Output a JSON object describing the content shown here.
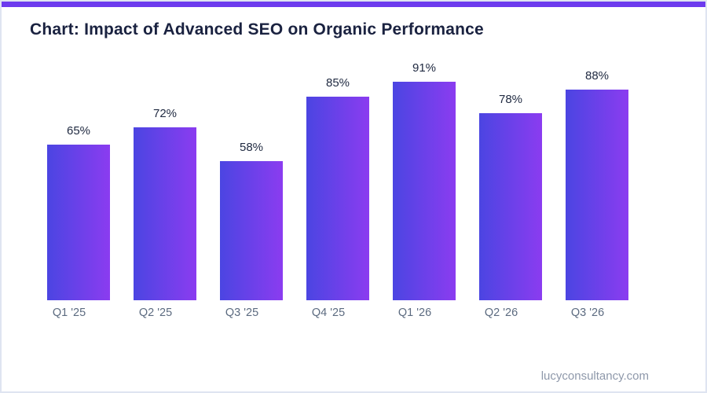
{
  "page": {
    "accent_bar_color": "#6d3bee",
    "background_color": "#ffffff",
    "frame_border_color": "#dfe4f1"
  },
  "header": {
    "title": "Chart: Impact of Advanced SEO on Organic Performance",
    "title_color": "#1a2240"
  },
  "footer": {
    "website": "lucyconsultancy.com"
  },
  "chart_data": {
    "type": "bar",
    "title": "Chart: Impact of Advanced SEO on Organic Performance",
    "categories": [
      "Q1 '25",
      "Q2 '25",
      "Q3 '25",
      "Q4 '25",
      "Q1 '26",
      "Q2 '26",
      "Q3 '26"
    ],
    "values": [
      65,
      72,
      58,
      85,
      91,
      78,
      88
    ],
    "value_labels": [
      "65%",
      "72%",
      "58%",
      "85%",
      "91%",
      "78%",
      "88%"
    ],
    "xlabel": "",
    "ylabel": "",
    "ylim": [
      0,
      100
    ],
    "grid": false,
    "legend": false,
    "bar_gradient_left": "#4b45e2",
    "bar_gradient_right": "#8b3cf0",
    "value_label_color": "#212b42",
    "category_label_color": "#5c6b80"
  }
}
